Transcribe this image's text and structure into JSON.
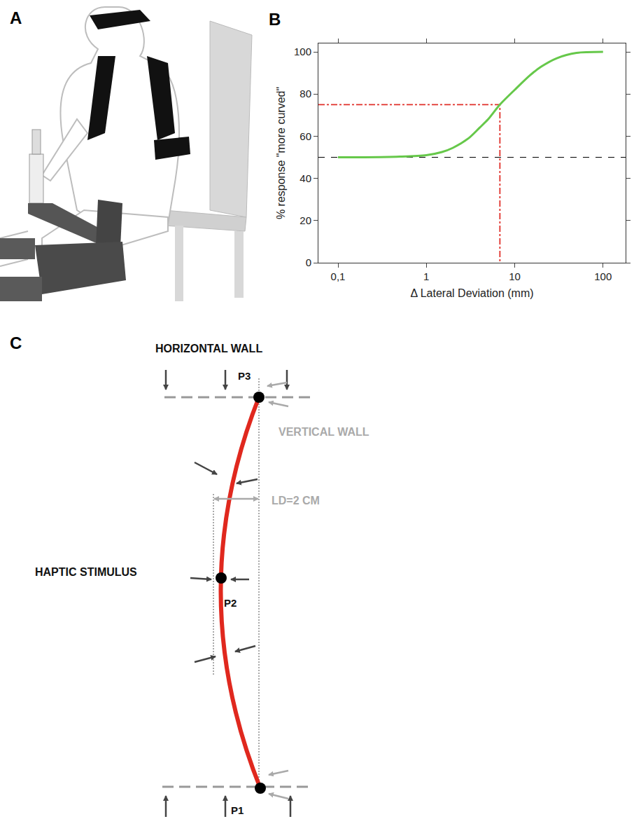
{
  "panel_labels": [
    "A",
    "B",
    "C"
  ],
  "chart_data": {
    "type": "line",
    "x": [
      0.1,
      0.2,
      0.5,
      1,
      1.5,
      2,
      3,
      4,
      5,
      6.8,
      10,
      15,
      20,
      30,
      50,
      100
    ],
    "values": [
      50,
      50,
      50.3,
      51,
      52.5,
      54.5,
      59,
      64,
      68,
      75,
      82,
      89,
      93,
      97,
      99.5,
      100
    ],
    "color": "#66c84a",
    "xlabel": "Δ Lateral Deviation (mm)",
    "ylabel": "% response \"more curved\"",
    "xlim": [
      0.06,
      180
    ],
    "ylim": [
      0,
      104
    ],
    "xticks": [
      {
        "value": 0.1,
        "label": "0,1"
      },
      1,
      10,
      100
    ],
    "yticks": [
      0,
      20,
      40,
      60,
      80,
      100
    ],
    "log": "x",
    "grid": false,
    "threshold": {
      "x": 6.8,
      "y": 75,
      "color": "#e0302a",
      "line_style": "dashdot"
    },
    "chance_level": {
      "y": 50,
      "color": "#000000",
      "line_style": "dash"
    }
  },
  "diagram": {
    "horizontal_wall": "HORIZONTAL WALL",
    "vertical_wall": "VERTICAL WALL",
    "lateral_deviation": "LD=2 CM",
    "haptic_stimulus": "HAPTIC STIMULUS",
    "points": {
      "P1": "P1",
      "P2": "P2",
      "P3": "P3"
    }
  }
}
